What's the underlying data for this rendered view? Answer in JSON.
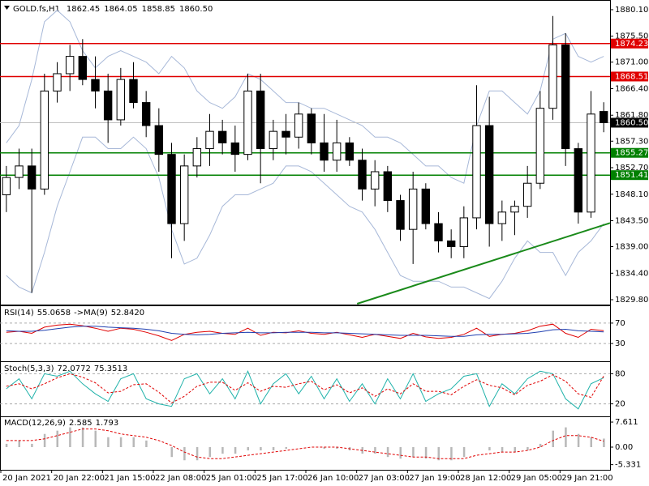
{
  "chart_data": [
    {
      "type": "candlestick",
      "title": "GOLD.fs,H1",
      "ohlc": [
        {
          "value": 1862.45,
          "label": "1862.45"
        },
        {
          "value": 1864.05,
          "label": "1864.05"
        },
        {
          "value": 1858.85,
          "label": "1858.85"
        },
        {
          "value": 1860.5,
          "label": "1860.50"
        }
      ],
      "categories": [
        "20 Jan 2021",
        null,
        null,
        null,
        "20 Jan 22:00",
        null,
        null,
        null,
        "21 Jan 15:00",
        null,
        null,
        null,
        "22 Jan 08:00",
        null,
        null,
        null,
        "25 Jan 01:00",
        null,
        null,
        null,
        "25 Jan 17:00",
        null,
        null,
        null,
        "26 Jan 10:00",
        null,
        null,
        null,
        "27 Jan 03:00",
        null,
        null,
        null,
        "27 Jan 19:00",
        null,
        null,
        null,
        "28 Jan 12:00",
        null,
        null,
        null,
        "29 Jan 05:00",
        null,
        null,
        null,
        "29 Jan 21:00",
        null,
        null,
        null
      ],
      "open": [
        1848,
        1851,
        1853,
        1849,
        1866,
        1869,
        1872,
        1868,
        1866,
        1861,
        1868,
        1864,
        1860,
        1855,
        1843,
        1853,
        1856,
        1859,
        1857,
        1855,
        1866,
        1856,
        1859,
        1858,
        1862,
        1857,
        1854,
        1857,
        1854,
        1849,
        1852,
        1847,
        1842,
        1849,
        1843,
        1840,
        1839,
        1844,
        1860,
        1843,
        1845,
        1846,
        1850,
        1863,
        1874,
        1856,
        1845,
        1862.45
      ],
      "high": [
        1853,
        1856,
        1856,
        1869,
        1871,
        1874,
        1875,
        1872,
        1869,
        1870,
        1871,
        1866,
        1863,
        1857,
        1855,
        1858,
        1862,
        1861,
        1860,
        1869,
        1869,
        1861,
        1862,
        1864,
        1863,
        1862,
        1861,
        1858,
        1856,
        1854,
        1853,
        1848,
        1852,
        1850,
        1845,
        1842,
        1846,
        1867,
        1865,
        1847,
        1847,
        1853,
        1866,
        1879,
        1876,
        1857,
        1866,
        1864.05
      ],
      "low": [
        1845,
        1849,
        1831,
        1848,
        1864,
        1866,
        1867,
        1863,
        1857,
        1860,
        1863,
        1858,
        1852,
        1837,
        1840,
        1851,
        1853,
        1855,
        1852,
        1854,
        1850,
        1854,
        1855,
        1856,
        1855,
        1852,
        1852,
        1853,
        1847,
        1846,
        1845,
        1840,
        1836,
        1842,
        1838,
        1837,
        1837,
        1842,
        1839,
        1840,
        1841,
        1844,
        1849,
        1861,
        1853,
        1843,
        1844,
        1858.85
      ],
      "close": [
        1851,
        1853,
        1849,
        1866,
        1869,
        1872,
        1868,
        1866,
        1861,
        1868,
        1864,
        1860,
        1855,
        1843,
        1853,
        1856,
        1859,
        1857,
        1855,
        1866,
        1856,
        1859,
        1858,
        1862,
        1857,
        1854,
        1857,
        1854,
        1849,
        1852,
        1847,
        1842,
        1849,
        1843,
        1840,
        1839,
        1844,
        1860,
        1843,
        1845,
        1846,
        1850,
        1863,
        1874,
        1856,
        1845,
        1862,
        1860.5
      ],
      "color": "#000000",
      "series": [
        {
          "color": "#a7b8d8",
          "values": [
            1857,
            1860,
            1868,
            1878,
            1880,
            1878,
            1873,
            1870,
            1872,
            1873,
            1872,
            1871,
            1869,
            1872,
            1870,
            1866,
            1864,
            1863,
            1865,
            1869,
            1868,
            1866,
            1864,
            1864,
            1863,
            1863,
            1862,
            1861,
            1860,
            1858,
            1858,
            1857,
            1855,
            1853,
            1853,
            1851,
            1850,
            1860,
            1866,
            1866,
            1864,
            1862,
            1866,
            1875,
            1876,
            1872,
            1871,
            1872
          ]
        },
        {
          "color": "#a7b8d8",
          "values": [
            1834,
            1832,
            1831,
            1838,
            1846,
            1852,
            1858,
            1858,
            1856,
            1856,
            1858,
            1856,
            1851,
            1842,
            1836,
            1837,
            1841,
            1846,
            1848,
            1848,
            1849,
            1850,
            1853,
            1853,
            1852,
            1850,
            1848,
            1846,
            1845,
            1842,
            1838,
            1834,
            1833,
            1833,
            1833,
            1832,
            1832,
            1831,
            1830,
            1833,
            1837,
            1840,
            1838,
            1838,
            1834,
            1838,
            1840,
            1843
          ]
        }
      ],
      "levels": [
        {
          "value": 1874.23,
          "color": "#e00000"
        },
        {
          "value": 1868.51,
          "color": "#e00000"
        },
        {
          "value": 1855.27,
          "color": "#008000"
        },
        {
          "value": 1851.41,
          "color": "#008000"
        }
      ],
      "current_price": {
        "value": 1860.5,
        "label": "1860.50"
      },
      "trendline": {
        "x": [
          27.6,
          47.5
        ],
        "y": [
          1829.1,
          1843.1
        ],
        "color": "#1a8a1a"
      },
      "ylim": [
        1829.1,
        1881.5
      ],
      "yticks": [
        {
          "value": 1880.1,
          "label": "1880.10"
        },
        {
          "value": 1875.5,
          "label": "1875.50"
        },
        {
          "value": 1871.0,
          "label": "1871.00"
        },
        {
          "value": 1866.4,
          "label": "1866.40"
        },
        {
          "value": 1861.8,
          "label": "1861.80"
        },
        {
          "value": 1857.3,
          "label": "1857.30"
        },
        {
          "value": 1852.7,
          "label": "1852.70"
        },
        {
          "value": 1848.1,
          "label": "1848.10"
        },
        {
          "value": 1843.5,
          "label": "1843.50"
        },
        {
          "value": 1839.0,
          "label": "1839.00"
        },
        {
          "value": 1834.4,
          "label": "1834.40"
        },
        {
          "value": 1829.8,
          "label": "1829.80"
        }
      ],
      "grid": false
    },
    {
      "type": "line",
      "title": "RSI(14)",
      "readout": [
        55.0658,
        {
          "value": 52.842,
          "label": "52.8420"
        }
      ],
      "readout_label": "->MA(9)",
      "series": [
        {
          "color": "#e00000",
          "style": "line",
          "values": [
            52,
            54,
            50,
            62,
            66,
            68,
            65,
            60,
            54,
            60,
            58,
            52,
            45,
            36,
            48,
            52,
            54,
            50,
            48,
            60,
            46,
            52,
            51,
            55,
            50,
            48,
            52,
            47,
            42,
            48,
            44,
            40,
            50,
            43,
            40,
            42,
            48,
            60,
            44,
            48,
            50,
            55,
            64,
            68,
            50,
            42,
            58,
            55.0658
          ]
        },
        {
          "color": "#1f3fb0",
          "style": "line",
          "values": [
            55,
            54,
            54,
            56,
            59,
            62,
            64,
            64,
            62,
            61,
            60,
            58,
            55,
            50,
            48,
            47,
            48,
            50,
            51,
            52,
            51,
            51,
            52,
            52,
            52,
            51,
            51,
            50,
            49,
            48,
            47,
            46,
            46,
            46,
            45,
            44,
            44,
            47,
            48,
            48,
            49,
            50,
            53,
            57,
            58,
            55,
            54,
            52.842
          ]
        }
      ],
      "ylim": [
        0,
        100
      ],
      "yticks": [
        70,
        30
      ],
      "grid": true
    },
    {
      "type": "line",
      "title": "Stoch(5,3,3)",
      "readout": [
        72.0772,
        75.3513
      ],
      "series": [
        {
          "color": "#20b2aa",
          "style": "line",
          "values": [
            50,
            70,
            30,
            80,
            75,
            85,
            60,
            40,
            25,
            70,
            80,
            30,
            20,
            15,
            70,
            80,
            40,
            70,
            30,
            85,
            20,
            60,
            80,
            40,
            75,
            30,
            70,
            25,
            60,
            20,
            70,
            30,
            80,
            25,
            40,
            50,
            75,
            80,
            15,
            60,
            40,
            70,
            85,
            80,
            30,
            10,
            60,
            72.0772
          ]
        },
        {
          "color": "#e00000",
          "style": "dashed",
          "values": [
            55,
            60,
            50,
            60,
            72,
            80,
            73,
            62,
            42,
            45,
            58,
            60,
            43,
            22,
            35,
            55,
            63,
            63,
            47,
            62,
            45,
            55,
            53,
            60,
            65,
            48,
            58,
            42,
            52,
            35,
            50,
            40,
            60,
            45,
            45,
            38,
            55,
            68,
            57,
            52,
            38,
            57,
            65,
            78,
            65,
            40,
            33,
            75.3513
          ]
        }
      ],
      "ylim": [
        0,
        100
      ],
      "yticks": [
        80,
        20
      ],
      "grid": true
    },
    {
      "type": "bar",
      "title": "MACD(12,26,9)",
      "readout": [
        2.585,
        1.793
      ],
      "series": [
        {
          "color": "#b8b8b8",
          "style": "histogram",
          "values": [
            1,
            2,
            1,
            4,
            5,
            6,
            6,
            5,
            3,
            3,
            3,
            2,
            0,
            -3,
            -4,
            -4,
            -3,
            -2,
            -2,
            -1,
            -1,
            -1,
            -0.5,
            0,
            0,
            -0.5,
            -0.5,
            -1,
            -2,
            -2,
            -3,
            -3.5,
            -3,
            -3.5,
            -4,
            -4,
            -3,
            0,
            -1,
            -1.5,
            -1.5,
            -1,
            1,
            5,
            6,
            4,
            3,
            2.585
          ]
        },
        {
          "color": "#e00000",
          "style": "dashed",
          "values": [
            2,
            2,
            2,
            2.5,
            3.5,
            4.5,
            5.5,
            5.5,
            5,
            4,
            3.5,
            3,
            2,
            0.5,
            -1.5,
            -3,
            -3.5,
            -3.5,
            -3,
            -2.5,
            -2,
            -1.5,
            -1,
            -0.5,
            0,
            0,
            0,
            -0.5,
            -1,
            -1.5,
            -2,
            -2.5,
            -3,
            -3,
            -3.5,
            -3.5,
            -3.5,
            -2.5,
            -2,
            -1.5,
            -1.5,
            -1,
            0,
            2,
            3.5,
            3.5,
            3,
            1.793
          ]
        }
      ],
      "ylim": [
        -6.4,
        9.1
      ],
      "yticks": [
        7.611,
        {
          "value": 0,
          "label": "0.00"
        },
        -5.331
      ],
      "grid": false
    }
  ]
}
